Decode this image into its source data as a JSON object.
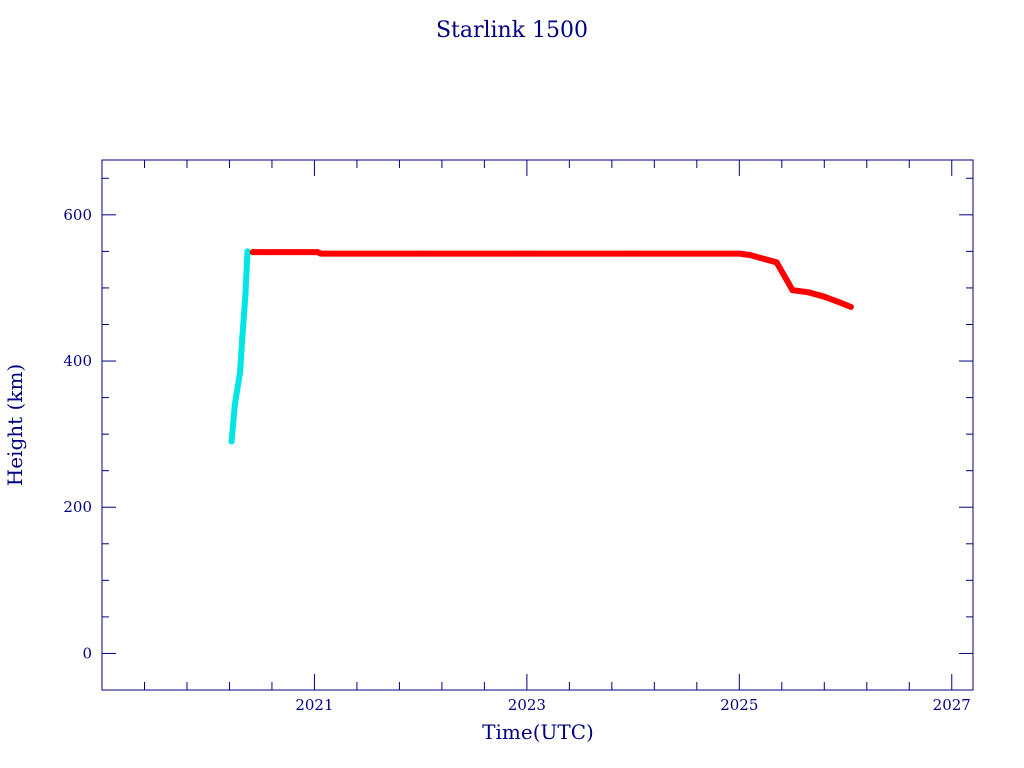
{
  "chart_data": {
    "type": "line",
    "title": "Starlink 1500",
    "xlabel": "Time(UTC)",
    "ylabel": "Height (km)",
    "xlim": [
      2019.0,
      2027.2
    ],
    "ylim": [
      -50,
      675
    ],
    "x_ticks": [
      2021,
      2023,
      2025,
      2027
    ],
    "x_minor_ticks": [
      2019.4,
      2019.8,
      2020.2,
      2020.6,
      2021.4,
      2021.8,
      2022.2,
      2022.6,
      2023.4,
      2023.8,
      2024.2,
      2024.6,
      2025.4,
      2025.8,
      2026.2,
      2026.6
    ],
    "y_ticks": [
      0,
      200,
      400,
      600
    ],
    "y_minor_ticks": [
      50,
      100,
      150,
      250,
      300,
      350,
      450,
      500,
      550,
      650
    ],
    "grid": false,
    "series": [
      {
        "color": "#00e5e5",
        "x": [
          2020.22,
          2020.25,
          2020.3,
          2020.32,
          2020.35,
          2020.37
        ],
        "y": [
          290,
          340,
          385,
          430,
          490,
          550
        ]
      },
      {
        "color": "#ff0000",
        "x": [
          2020.42,
          2020.6,
          2020.8,
          2021.03,
          2021.06,
          2022.0,
          2023.0,
          2024.0,
          2025.0,
          2025.1,
          2025.2,
          2025.35,
          2025.45,
          2025.5,
          2025.65,
          2025.8,
          2025.95,
          2026.05
        ],
        "y": [
          549,
          549,
          549,
          549,
          547,
          547,
          547,
          547,
          547,
          545,
          541,
          535,
          510,
          497,
          494,
          488,
          480,
          474
        ]
      }
    ]
  }
}
